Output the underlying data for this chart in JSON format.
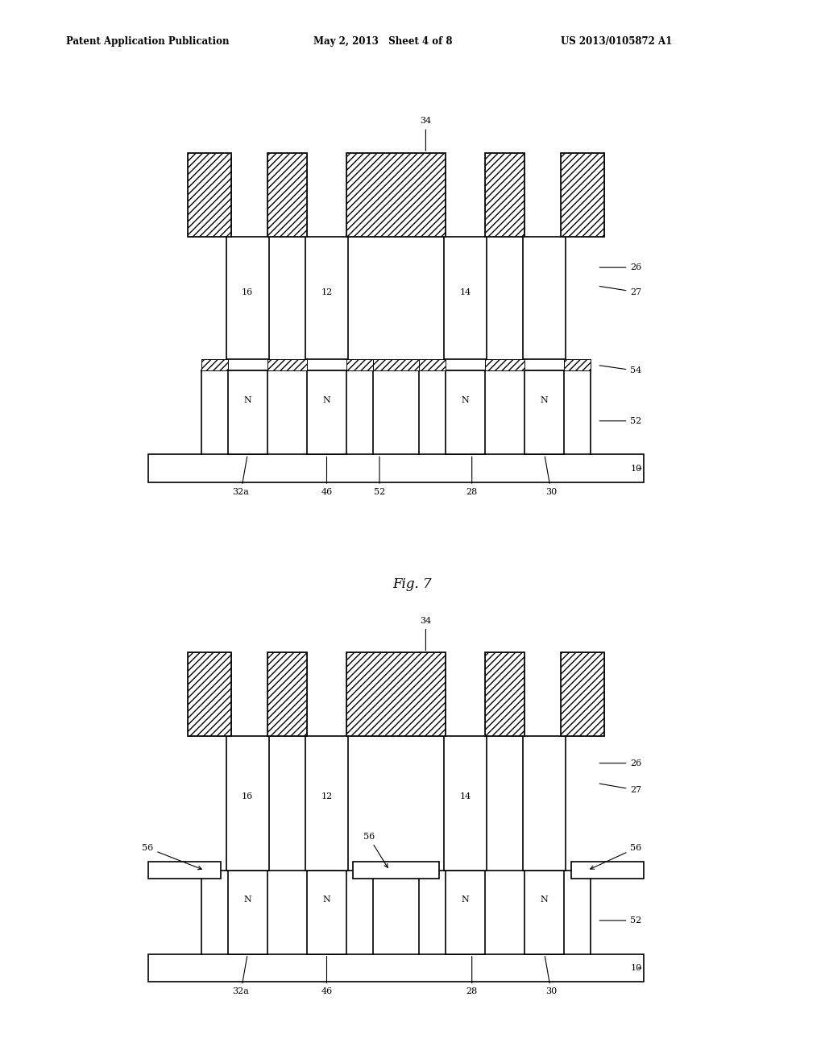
{
  "header_left": "Patent Application Publication",
  "header_center": "May 2, 2013   Sheet 4 of 8",
  "header_right": "US 2013/0105872 A1",
  "bg_color": "#ffffff",
  "lw": 1.2
}
